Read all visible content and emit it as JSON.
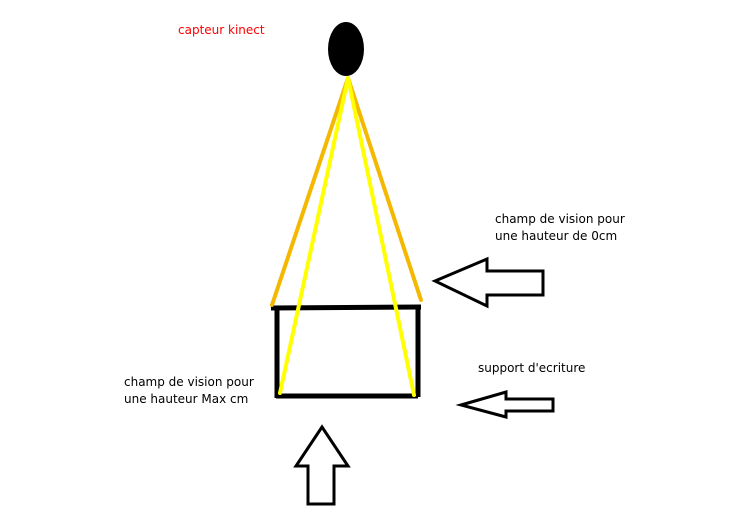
{
  "labels": {
    "sensor": "capteur kinect",
    "field_top": [
      "champ de vision pour",
      "une hauteur de 0cm"
    ],
    "support": "support d'ecriture",
    "field_max": [
      "champ de vision pour",
      "une hauteur Max cm"
    ]
  },
  "colors": {
    "sensor_label": "#ff0000",
    "orange_rays": "#f5b800",
    "yellow_rays": "#ffff00",
    "outline": "#000000"
  },
  "icons": [
    "kinect-sensor-ellipse",
    "left-arrow",
    "up-arrow"
  ]
}
